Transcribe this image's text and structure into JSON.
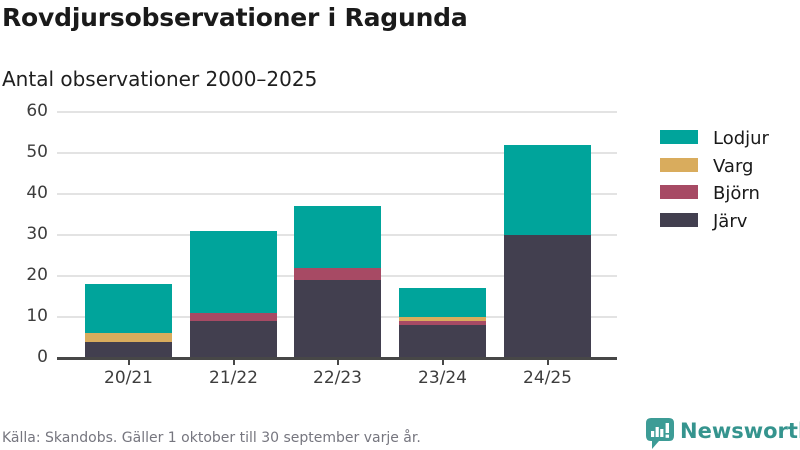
{
  "header": {
    "title": "Rovdjursobservationer i Ragunda",
    "subtitle": "Antal observationer 2000–2025"
  },
  "chart_data": {
    "type": "bar",
    "stacked": true,
    "title": "Rovdjursobservationer i Ragunda",
    "subtitle": "Antal observationer 2000–2025",
    "categories": [
      "20/21",
      "21/22",
      "22/23",
      "23/24",
      "24/25"
    ],
    "series": [
      {
        "name": "Lodjur",
        "color": "#00a49b",
        "values": [
          12,
          20,
          15,
          7,
          22
        ]
      },
      {
        "name": "Varg",
        "color": "#d9ac5d",
        "values": [
          2,
          0,
          0,
          1,
          0
        ]
      },
      {
        "name": "Björn",
        "color": "#a74a64",
        "values": [
          0,
          2,
          3,
          1,
          0
        ]
      },
      {
        "name": "Järv",
        "color": "#423f4f",
        "values": [
          4,
          9,
          19,
          8,
          30
        ]
      }
    ],
    "stack_order_bottom_to_top": [
      "Järv",
      "Björn",
      "Varg",
      "Lodjur"
    ],
    "totals": [
      18,
      31,
      37,
      17,
      52
    ],
    "xlabel": "",
    "ylabel": "",
    "ylim": [
      0,
      60
    ],
    "yticks": [
      0,
      10,
      20,
      30,
      40,
      50,
      60
    ],
    "grid": true,
    "legend_position": "right",
    "legend_order": [
      "Lodjur",
      "Varg",
      "Björn",
      "Järv"
    ]
  },
  "footer": {
    "source": "Källa: Skandobs. Gäller 1 oktober till 30 september varje år."
  },
  "branding": {
    "logo_text": "Newsworthy",
    "logo_icon": "bar-chart-speech-bubble-icon",
    "logo_color": "#3d9c96"
  },
  "colors": {
    "gridline": "#e3e3e3",
    "axis": "#474747",
    "title_text": "#1a1a1a",
    "footer_text": "#76767f"
  }
}
